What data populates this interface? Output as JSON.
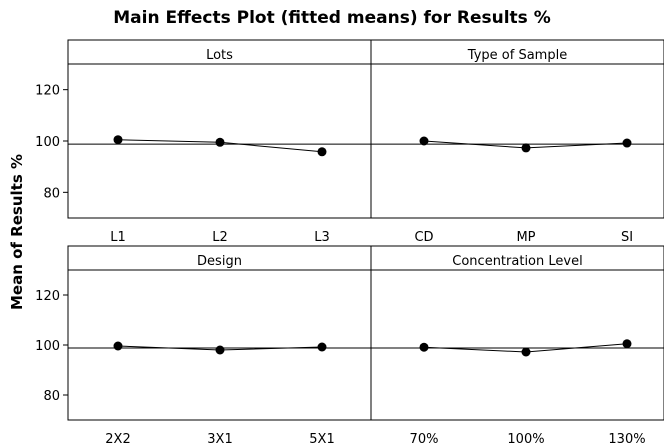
{
  "title": "Main Effects Plot (fitted means) for Results %",
  "chart_data": {
    "type": "line",
    "title": "Main Effects Plot (fitted means) for Results %",
    "ylabel": "Mean of Results %",
    "ylim": [
      70,
      130
    ],
    "y_ticks": [
      80,
      100,
      120
    ],
    "reference_line": 98.8,
    "grid": false,
    "panels": [
      {
        "title": "Lots",
        "categories": [
          "L1",
          "L2",
          "L3"
        ],
        "values": [
          100.5,
          99.5,
          95.8
        ]
      },
      {
        "title": "Type of Sample",
        "categories": [
          "CD",
          "MP",
          "SI"
        ],
        "values": [
          100.0,
          97.3,
          99.2
        ]
      },
      {
        "title": "Design",
        "categories": [
          "2X2",
          "3X1",
          "5X1"
        ],
        "values": [
          99.6,
          98.0,
          99.2
        ]
      },
      {
        "title": "Concentration Level",
        "categories": [
          "70%",
          "100%",
          "130%"
        ],
        "values": [
          99.1,
          97.2,
          100.5
        ]
      }
    ]
  }
}
